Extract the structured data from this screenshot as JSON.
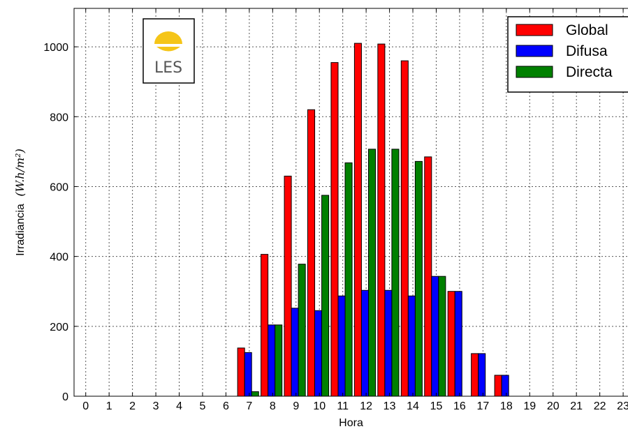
{
  "chart_data": {
    "type": "bar",
    "xlabel": "Hora",
    "ylabel": "Irradiancia",
    "ylabel_units": "(W.h/m²)",
    "ylim": [
      0,
      1110
    ],
    "yticks": [
      0,
      200,
      400,
      600,
      800,
      1000
    ],
    "categories": [
      "0",
      "1",
      "2",
      "3",
      "4",
      "5",
      "6",
      "7",
      "8",
      "9",
      "10",
      "11",
      "12",
      "13",
      "14",
      "15",
      "16",
      "17",
      "18",
      "19",
      "20",
      "21",
      "22",
      "23"
    ],
    "grid": true,
    "legend_position": "top-right",
    "series": [
      {
        "name": "Global",
        "color": "#ff0000",
        "values": [
          0,
          0,
          0,
          0,
          0,
          0,
          0,
          138,
          406,
          630,
          820,
          955,
          1010,
          1008,
          960,
          685,
          300,
          122,
          60,
          0,
          0,
          0,
          0,
          0
        ]
      },
      {
        "name": "Difusa",
        "color": "#0000ff",
        "values": [
          0,
          0,
          0,
          0,
          0,
          0,
          0,
          125,
          204,
          252,
          245,
          287,
          303,
          303,
          287,
          343,
          300,
          122,
          60,
          0,
          0,
          0,
          0,
          0
        ]
      },
      {
        "name": "Directa",
        "color": "#008000",
        "values": [
          0,
          0,
          0,
          0,
          0,
          0,
          0,
          13,
          204,
          378,
          575,
          668,
          707,
          707,
          672,
          343,
          null,
          null,
          null,
          null,
          null,
          null,
          null,
          null
        ]
      }
    ]
  },
  "logo": {
    "text": "LES",
    "sun_color": "#f5c518"
  }
}
